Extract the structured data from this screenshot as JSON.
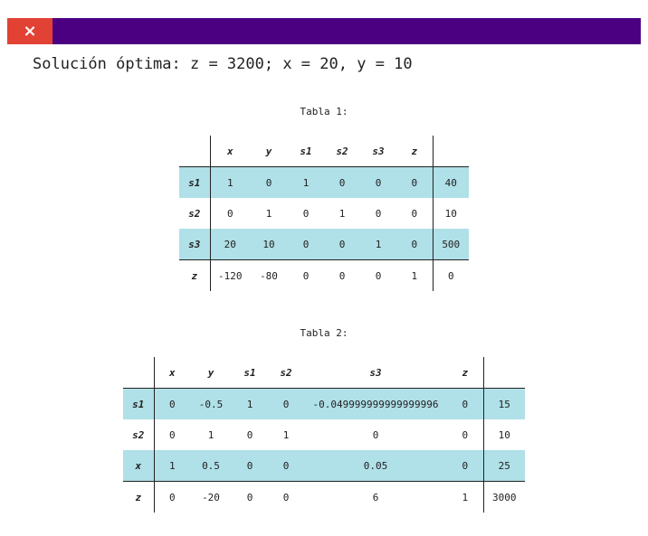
{
  "window": {
    "close_icon": "×",
    "accent_color": "#4b0082",
    "close_color": "#e24234"
  },
  "solution_text": "Solución óptima: z = 3200; x = 20, y = 10",
  "tables": [
    {
      "caption": "Tabla 1:",
      "columns": [
        "x",
        "y",
        "s1",
        "s2",
        "s3",
        "z"
      ],
      "rows": [
        {
          "label": "s1",
          "cells": [
            "1",
            "0",
            "1",
            "0",
            "0",
            "0"
          ],
          "rhs": "40"
        },
        {
          "label": "s2",
          "cells": [
            "0",
            "1",
            "0",
            "1",
            "0",
            "0"
          ],
          "rhs": "10"
        },
        {
          "label": "s3",
          "cells": [
            "20",
            "10",
            "0",
            "0",
            "1",
            "0"
          ],
          "rhs": "500"
        },
        {
          "label": "z",
          "cells": [
            "-120",
            "-80",
            "0",
            "0",
            "0",
            "1"
          ],
          "rhs": "0"
        }
      ]
    },
    {
      "caption": "Tabla 2:",
      "columns": [
        "x",
        "y",
        "s1",
        "s2",
        "s3",
        "z"
      ],
      "rows": [
        {
          "label": "s1",
          "cells": [
            "0",
            "-0.5",
            "1",
            "0",
            "-0.049999999999999996",
            "0"
          ],
          "rhs": "15"
        },
        {
          "label": "s2",
          "cells": [
            "0",
            "1",
            "0",
            "1",
            "0",
            "0"
          ],
          "rhs": "10"
        },
        {
          "label": "x",
          "cells": [
            "1",
            "0.5",
            "0",
            "0",
            "0.05",
            "0"
          ],
          "rhs": "25"
        },
        {
          "label": "z",
          "cells": [
            "0",
            "-20",
            "0",
            "0",
            "6",
            "1"
          ],
          "rhs": "3000"
        }
      ]
    }
  ]
}
